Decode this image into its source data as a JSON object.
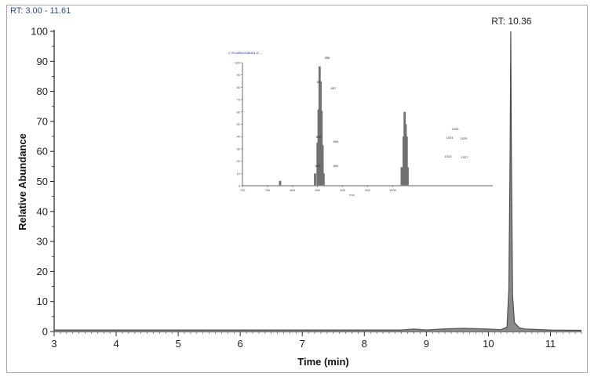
{
  "header": {
    "rt_range": "RT: 3.00 - 11.61"
  },
  "chart_data": [
    {
      "type": "line",
      "xlabel": "Time (min)",
      "ylabel": "Relative Abundance",
      "xlim": [
        3,
        11.5
      ],
      "ylim": [
        0,
        100
      ],
      "x_ticks": [
        "3",
        "4",
        "5",
        "6",
        "7",
        "8",
        "9",
        "10",
        "11"
      ],
      "y_ticks": [
        "0",
        "10",
        "20",
        "30",
        "40",
        "50",
        "60",
        "70",
        "80",
        "90",
        "100"
      ],
      "series": [
        {
          "color": "#4d4d4d",
          "x": [
            3.0,
            8.6,
            8.8,
            9.0,
            9.3,
            9.6,
            10.0,
            10.2,
            10.3,
            10.33,
            10.35,
            10.36,
            10.37,
            10.39,
            10.42,
            10.5,
            10.6,
            11.0,
            11.5
          ],
          "y": [
            0.5,
            0.5,
            0.8,
            0.5,
            0.9,
            1.1,
            0.8,
            0.6,
            1.5,
            14,
            60,
            100,
            60,
            12,
            3,
            1.2,
            0.8,
            0.5,
            0.4
          ]
        }
      ],
      "annotations": [
        {
          "x": 10.36,
          "y": 100,
          "text": "RT: 10.36"
        }
      ]
    },
    {
      "type": "bar",
      "header": "c:\\Xcalibur\\data\\1.0...",
      "xlim": [
        700,
        1200
      ],
      "ylim": [
        0,
        100
      ],
      "x_ticks": [
        "700",
        "750",
        "800",
        "850",
        "900",
        "950",
        "1000"
      ],
      "y_ticks": [
        "0",
        "10",
        "20",
        "30",
        "40",
        "50",
        "60",
        "70",
        "80",
        "90",
        "100"
      ],
      "xlabel": "m/z",
      "series": [
        {
          "color": "#4d4d4d",
          "x": [
            775,
            845,
            850,
            852,
            854,
            856,
            858,
            860,
            862,
            1018,
            1022,
            1024,
            1026,
            1028,
            1030
          ],
          "y": [
            4,
            10,
            35,
            62,
            97,
            84,
            61,
            33,
            10,
            15,
            40,
            60,
            50,
            40,
            15
          ]
        }
      ],
      "peak_labels": [
        "856",
        "854",
        "857",
        "858",
        "855",
        "859",
        "860",
        "1025",
        "1024",
        "1026",
        "1023",
        "1027"
      ]
    }
  ]
}
